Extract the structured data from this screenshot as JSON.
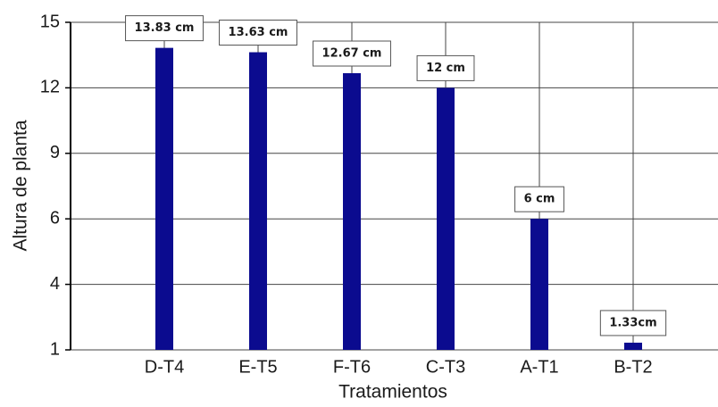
{
  "chart_data": {
    "type": "bar",
    "x_label": "Tratamientos",
    "y_label": "Altura de planta",
    "categories": [
      "D-T4",
      "E-T5",
      "F-T6",
      "C-T3",
      "A-T1",
      "B-T2"
    ],
    "values": [
      13.83,
      13.63,
      12.67,
      12,
      6,
      1.33
    ],
    "value_labels": [
      "13.83 cm",
      "13.63 cm",
      "12.67 cm",
      "12 cm",
      "6 cm",
      "1.33cm"
    ],
    "color": "#0b0b8f",
    "ylim": [
      1,
      15
    ],
    "yticks": [
      1,
      4,
      6,
      9,
      12,
      15
    ],
    "grid": true
  }
}
